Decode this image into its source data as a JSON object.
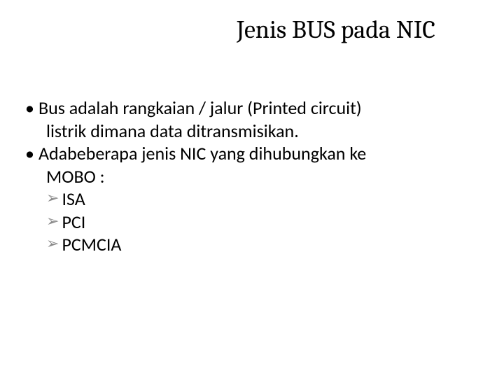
{
  "slide": {
    "title": "Jenis BUS pada NIC",
    "title_fontsize": 36,
    "title_font": "Cambria",
    "title_color": "#000000",
    "body_fontsize": 26,
    "body_font": "Calibri",
    "body_color": "#000000",
    "arrow_color": "#8a8a8a",
    "background_color": "#ffffff",
    "bullets": [
      {
        "marker": "•",
        "line1": "Bus adalah rangkaian / jalur (Printed circuit)",
        "line2": "listrik dimana data ditransmisikan."
      },
      {
        "marker": "•",
        "line1": "Adabeberapa jenis NIC yang dihubungkan ke",
        "line2": "MOBO :"
      }
    ],
    "sub_bullets": [
      {
        "marker": "➢",
        "text": "ISA"
      },
      {
        "marker": "➢",
        "text": "PCI"
      },
      {
        "marker": "➢",
        "text": "PCMCIA"
      }
    ]
  }
}
